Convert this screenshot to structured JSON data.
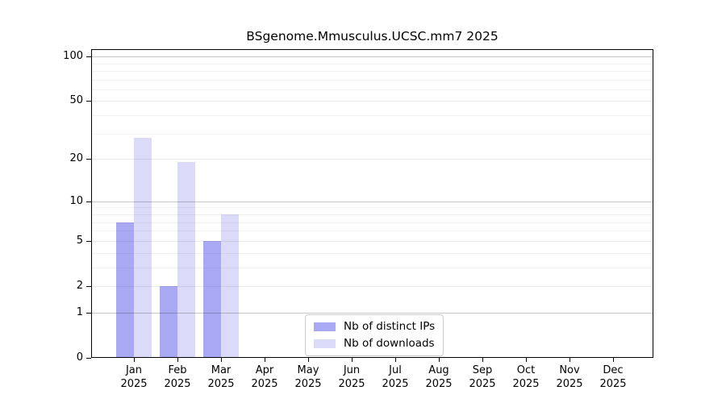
{
  "chart_data": {
    "type": "bar",
    "title": "BSgenome.Mmusculus.UCSC.mm7 2025",
    "scale": "log1p",
    "categories": [
      "Jan",
      "Feb",
      "Mar",
      "Apr",
      "May",
      "Jun",
      "Jul",
      "Aug",
      "Sep",
      "Oct",
      "Nov",
      "Dec"
    ],
    "year_label": "2025",
    "series": [
      {
        "name": "Nb of distinct IPs",
        "key": "distinct-ips",
        "color": "#a9a9f3",
        "values": [
          7,
          2,
          5,
          0,
          0,
          0,
          0,
          0,
          0,
          0,
          0,
          0
        ]
      },
      {
        "name": "Nb of downloads",
        "key": "downloads",
        "color": "#dbdbf9",
        "values": [
          28,
          19,
          8,
          0,
          0,
          0,
          0,
          0,
          0,
          0,
          0,
          0
        ]
      }
    ],
    "y_ticks": [
      0,
      1,
      2,
      5,
      10,
      20,
      50,
      100
    ],
    "y_major_emphasis": [
      1,
      10,
      100
    ],
    "y_minor_gridlines": [
      3,
      4,
      6,
      7,
      8,
      9,
      30,
      40,
      60,
      70,
      80,
      90
    ],
    "ylim": [
      0,
      112
    ],
    "xlabel": "",
    "ylabel": "",
    "grid": true,
    "legend_position": "lower center",
    "colors": {
      "axis": "#000000",
      "gridline_major": "#c7c7c7",
      "gridline_regular": "#ebebeb",
      "gridline_minor": "#f2f2f2",
      "background": "#ffffff"
    }
  }
}
